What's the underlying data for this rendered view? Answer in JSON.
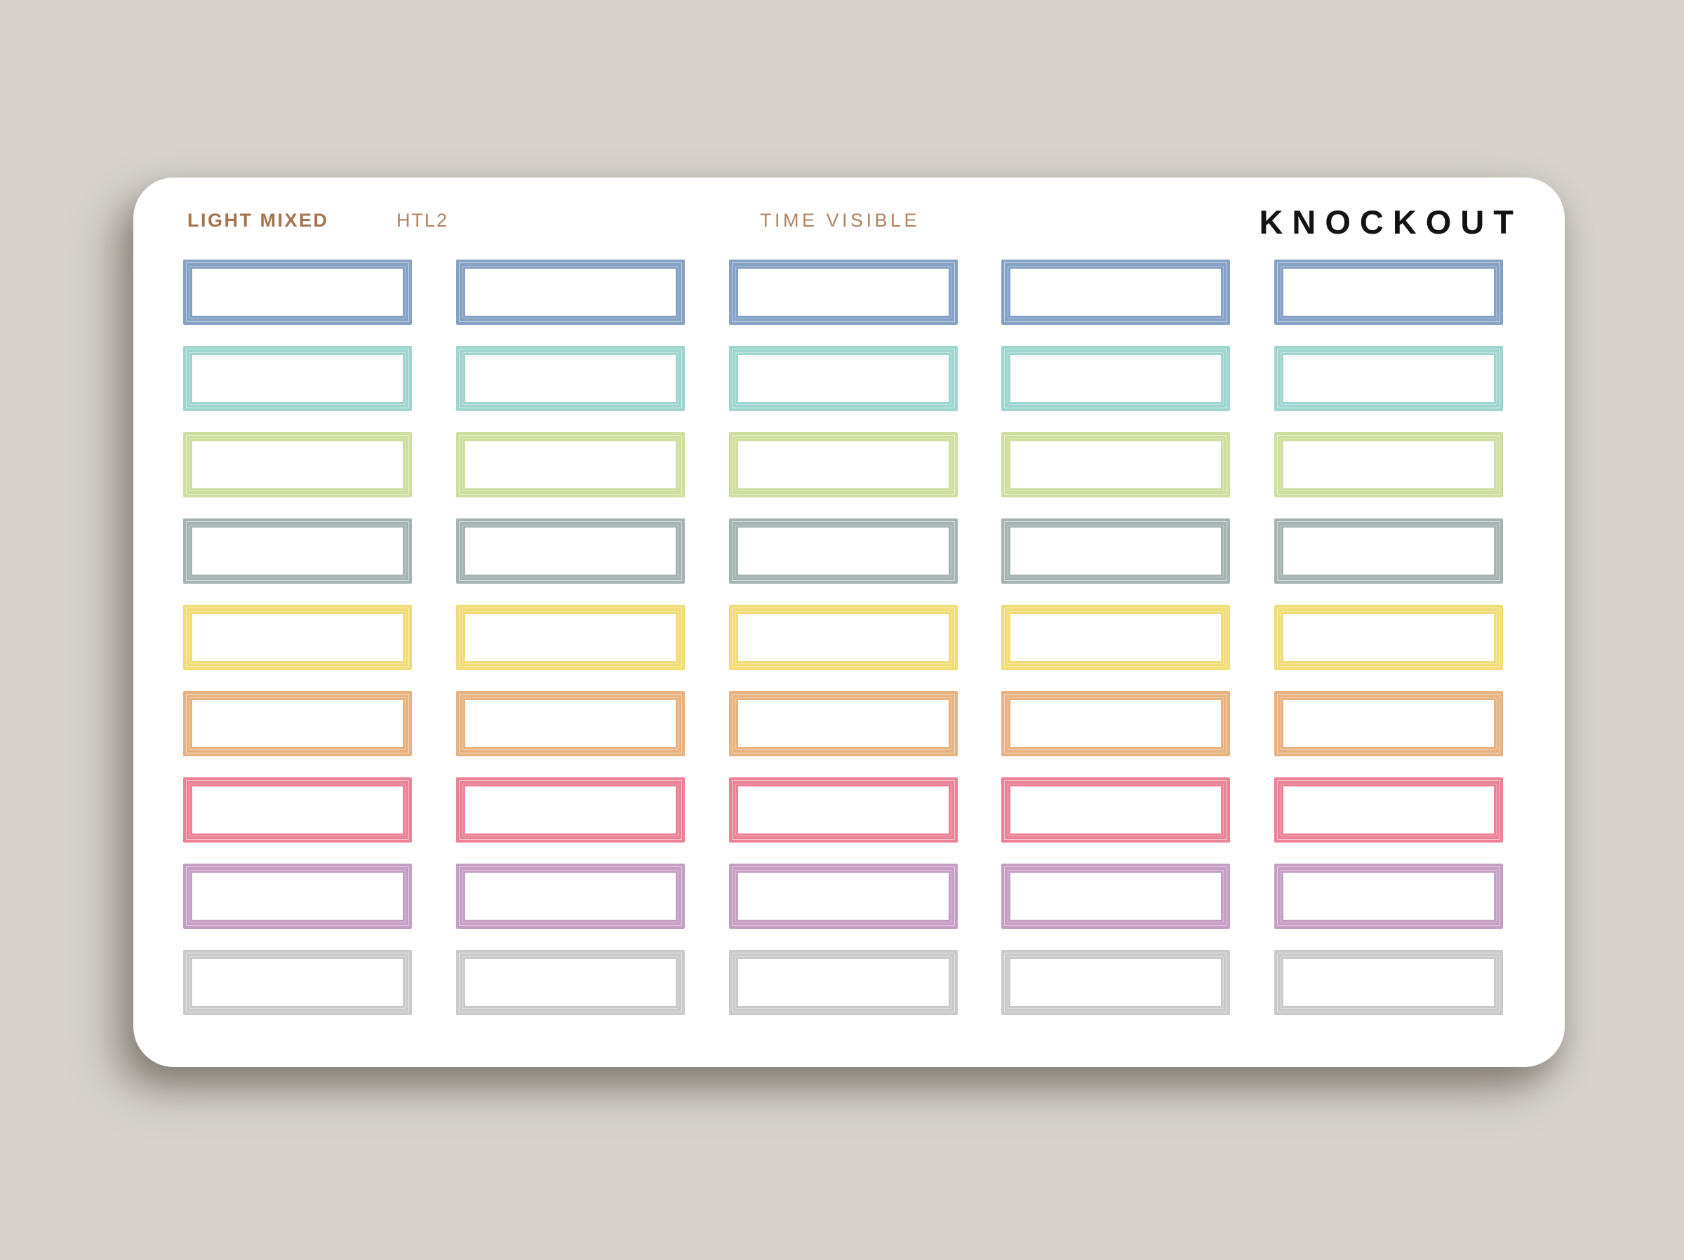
{
  "page": {
    "background_color": "#d7d3cc"
  },
  "sheet": {
    "background_color": "#ffffff",
    "header": {
      "collection": "LIGHT MIXED",
      "sku": "HTL2",
      "variant": "TIME VISIBLE",
      "brand": "KNOCKOUT",
      "text_color_bold": "#a5734c",
      "text_color_light": "#b2835f",
      "brand_color": "#131313"
    },
    "stickers": {
      "columns": 5,
      "style": "knockout-quarter-box-outline",
      "rows": [
        {
          "name": "blue",
          "color": "#84a2c5"
        },
        {
          "name": "teal",
          "color": "#9ed5d0"
        },
        {
          "name": "green",
          "color": "#cedfa0"
        },
        {
          "name": "gray-green",
          "color": "#a4b4b2"
        },
        {
          "name": "yellow",
          "color": "#f2dc76"
        },
        {
          "name": "orange",
          "color": "#e8b280"
        },
        {
          "name": "pink",
          "color": "#ed8195"
        },
        {
          "name": "purple",
          "color": "#c49ec5"
        },
        {
          "name": "gray",
          "color": "#cacaca"
        }
      ]
    }
  }
}
